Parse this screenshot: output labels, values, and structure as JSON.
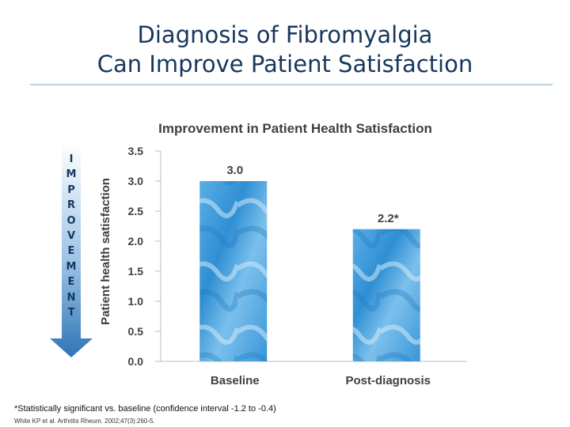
{
  "slide": {
    "title_line1": "Diagnosis of Fibromyalgia",
    "title_line2": "Can Improve Patient Satisfaction",
    "arrow_label": [
      "I",
      "M",
      "P",
      "R",
      "O",
      "V",
      "E",
      "M",
      "E",
      "N",
      "T"
    ],
    "footnote": "*Statistically significant vs. baseline (confidence interval -1.2 to -0.4)",
    "citation": "White KP et al. Arthritis Rheum. 2002;47(3):260-5."
  },
  "colors": {
    "title": "#17375e",
    "bar": "#4a9fde",
    "axis": "#bdbdbd",
    "arrow": "#2e75b6"
  },
  "chart_data": {
    "type": "bar",
    "title": "Improvement in Patient Health Satisfaction",
    "xlabel": "",
    "ylabel": "Patient health satisfaction",
    "categories": [
      "Baseline",
      "Post-diagnosis"
    ],
    "values": [
      3.0,
      2.2
    ],
    "data_labels": [
      "3.0",
      "2.2*"
    ],
    "ylim": [
      0,
      3.5
    ],
    "yticks": [
      0.0,
      0.5,
      1.0,
      1.5,
      2.0,
      2.5,
      3.0,
      3.5
    ],
    "ytick_labels": [
      "0.0",
      "0.5",
      "1.0",
      "1.5",
      "2.0",
      "2.5",
      "3.0",
      "3.5"
    ],
    "grid": false,
    "legend": "none"
  }
}
